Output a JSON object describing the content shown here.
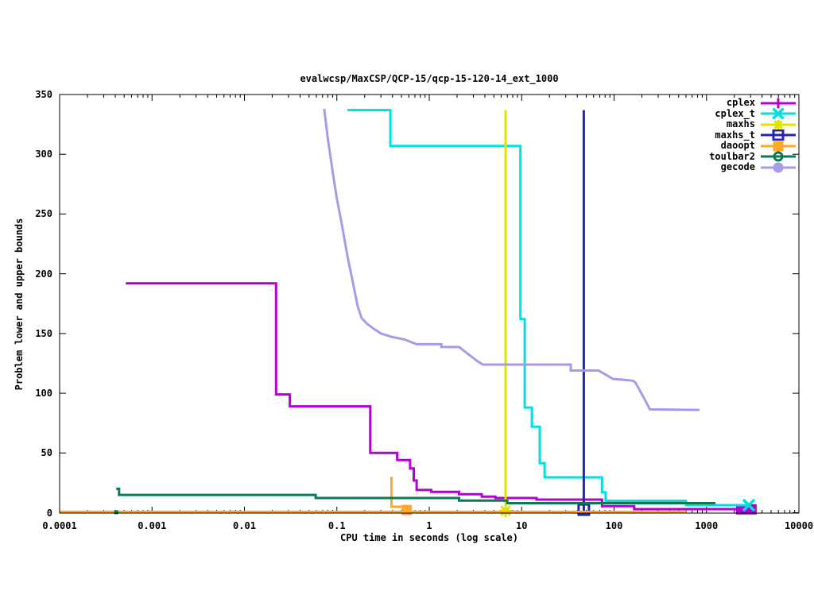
{
  "header": {
    "title": "evalwcsp/MaxCSP/QCP-15/qcp-15-120-14_ext_1000"
  },
  "chart_data": {
    "type": "line",
    "title": "evalwcsp/MaxCSP/QCP-15/qcp-15-120-14_ext_1000",
    "xlabel": "CPU time in seconds (log scale)",
    "ylabel": "Problem lower and upper bounds",
    "x_scale": "log",
    "xlim": [
      0.0001,
      10000
    ],
    "ylim": [
      0,
      350
    ],
    "x_ticks": [
      {
        "value": 0.0001,
        "label": "0.0001"
      },
      {
        "value": 0.001,
        "label": "0.001"
      },
      {
        "value": 0.01,
        "label": "0.01"
      },
      {
        "value": 0.1,
        "label": "0.1"
      },
      {
        "value": 1,
        "label": "1"
      },
      {
        "value": 10,
        "label": "10"
      },
      {
        "value": 100,
        "label": "100"
      },
      {
        "value": 1000,
        "label": "1000"
      },
      {
        "value": 10000,
        "label": "10000"
      }
    ],
    "y_ticks": [
      0,
      50,
      100,
      150,
      200,
      250,
      300,
      350
    ],
    "grid": false,
    "legend_position": "top-right",
    "series": [
      {
        "name": "cplex",
        "color": "#b400d3",
        "marker": "plus",
        "segments": [
          [
            [
              0.00052,
              192
            ],
            [
              0.022,
              192
            ],
            [
              0.022,
              99
            ],
            [
              0.031,
              99
            ],
            [
              0.031,
              89
            ],
            [
              0.23,
              89
            ],
            [
              0.23,
              50
            ],
            [
              0.45,
              50
            ],
            [
              0.45,
              44
            ],
            [
              0.62,
              44
            ],
            [
              0.62,
              37
            ],
            [
              0.68,
              37
            ],
            [
              0.68,
              27
            ],
            [
              0.73,
              27
            ],
            [
              0.73,
              19
            ],
            [
              1.05,
              19
            ],
            [
              1.05,
              17.5
            ],
            [
              2.1,
              17.5
            ],
            [
              2.1,
              15.5
            ],
            [
              3.7,
              15.5
            ],
            [
              3.7,
              13.5
            ],
            [
              5.2,
              13.5
            ],
            [
              5.2,
              12.3
            ],
            [
              14.5,
              12.3
            ],
            [
              14.5,
              11
            ],
            [
              74,
              11
            ],
            [
              74,
              5.5
            ],
            [
              165,
              5.5
            ],
            [
              165,
              3
            ],
            [
              2700,
              3
            ]
          ]
        ],
        "end_markers": [
          {
            "type": "square-filled",
            "t": 2700,
            "v": 2.8,
            "w": 26,
            "h": 13
          }
        ]
      },
      {
        "name": "cplex_t",
        "color": "#00e0e0",
        "marker": "x",
        "segments": [
          [
            [
              0.13,
              337
            ],
            [
              0.38,
              337
            ],
            [
              0.38,
              307
            ],
            [
              9.7,
              307
            ],
            [
              9.7,
              162
            ],
            [
              10.8,
              162
            ],
            [
              10.8,
              88
            ],
            [
              12.9,
              88
            ],
            [
              12.9,
              72
            ],
            [
              15.7,
              72
            ],
            [
              15.7,
              41.5
            ],
            [
              17.7,
              41.5
            ],
            [
              17.7,
              29.6
            ],
            [
              74,
              29.6
            ],
            [
              74,
              17
            ],
            [
              81,
              17
            ],
            [
              81,
              10
            ],
            [
              600,
              10
            ],
            [
              600,
              6.3
            ],
            [
              2870,
              6.3
            ]
          ]
        ],
        "end_markers": [
          {
            "type": "x",
            "t": 2870,
            "v": 6.3,
            "w": 14,
            "h": 14
          }
        ]
      },
      {
        "name": "maxhs",
        "color": "#e3e300",
        "marker": "star",
        "segments": [
          [
            [
              6.7,
              337
            ],
            [
              6.7,
              0
            ]
          ]
        ],
        "end_markers": [
          {
            "type": "star",
            "t": 6.7,
            "v": 1.6,
            "w": 16,
            "h": 16
          }
        ]
      },
      {
        "name": "maxhs_t",
        "color": "#2424b4",
        "marker": "square-open",
        "segments": [
          [
            [
              47,
              337
            ],
            [
              47,
              0
            ]
          ]
        ],
        "end_markers": [
          {
            "type": "square-open",
            "t": 47,
            "v": 2.6,
            "w": 13,
            "h": 13
          }
        ]
      },
      {
        "name": "daoopt",
        "color": "#ffaa22",
        "marker": "square-filled",
        "segments": [
          [
            [
              0.0001,
              0.7
            ],
            [
              600,
              0.7
            ]
          ],
          [
            [
              0.39,
              30
            ],
            [
              0.39,
              5
            ],
            [
              0.57,
              5
            ]
          ]
        ],
        "end_markers": [
          {
            "type": "square-filled",
            "t": 0.57,
            "v": 2.3,
            "w": 13,
            "h": 13
          }
        ]
      },
      {
        "name": "toulbar2",
        "color": "#0b7a4f",
        "marker": "circle-donut",
        "segments": [
          [
            [
              0.00041,
              20
            ],
            [
              0.00044,
              20
            ],
            [
              0.00044,
              14.9
            ],
            [
              0.059,
              14.9
            ],
            [
              0.059,
              12.3
            ],
            [
              2.1,
              12.3
            ],
            [
              2.1,
              10.2
            ],
            [
              7,
              10.2
            ],
            [
              7,
              8
            ],
            [
              1250,
              8
            ]
          ]
        ],
        "end_markers": [
          {
            "type": "square-filled",
            "t": 0.00041,
            "v": 0.4,
            "w": 5,
            "h": 5
          }
        ]
      },
      {
        "name": "gecode",
        "color": "#a79ae8",
        "marker": "circle-filled",
        "segments": [
          [
            [
              0.073,
              338
            ],
            [
              0.079,
              316
            ],
            [
              0.089,
              288
            ],
            [
              0.099,
              265
            ],
            [
              0.114,
              240
            ],
            [
              0.13,
              215
            ],
            [
              0.147,
              195
            ],
            [
              0.168,
              173
            ],
            [
              0.185,
              163
            ],
            [
              0.213,
              158
            ],
            [
              0.25,
              154
            ],
            [
              0.3,
              150
            ],
            [
              0.4,
              147
            ],
            [
              0.54,
              145
            ],
            [
              0.73,
              141
            ],
            [
              1.35,
              141
            ],
            [
              1.35,
              138.7
            ],
            [
              2.1,
              138.7
            ],
            [
              3.3,
              127
            ],
            [
              3.8,
              124
            ],
            [
              34,
              124
            ],
            [
              34,
              119
            ],
            [
              68,
              119
            ],
            [
              97,
              112
            ],
            [
              160,
              110.5
            ],
            [
              170,
              109
            ],
            [
              208,
              96.8
            ],
            [
              244,
              86.5
            ],
            [
              840,
              86
            ]
          ]
        ],
        "end_markers": []
      }
    ]
  },
  "legend": {
    "entries": [
      {
        "label": "cplex"
      },
      {
        "label": "cplex_t"
      },
      {
        "label": "maxhs"
      },
      {
        "label": "maxhs_t"
      },
      {
        "label": "daoopt"
      },
      {
        "label": "toulbar2"
      },
      {
        "label": "gecode"
      }
    ]
  }
}
